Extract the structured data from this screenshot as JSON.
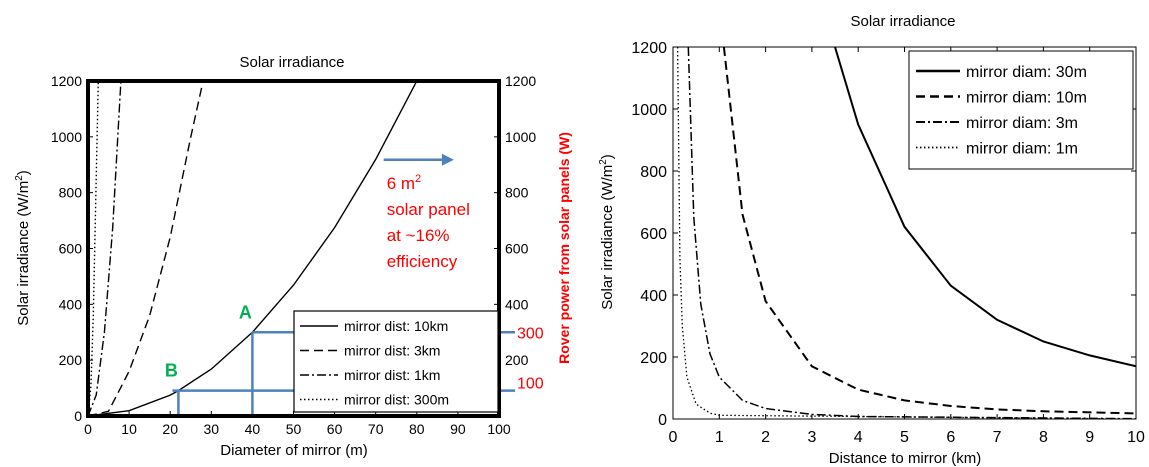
{
  "chart_data": [
    {
      "type": "line",
      "title": "Solar irradiance",
      "xlabel": "Diameter of mirror (m)",
      "ylabel": "Solar irradiance (W/m",
      "ylabel_sup": "2",
      "ylabel_end": ")",
      "y2label": "Rover power from solar panels (W)",
      "xlim": [
        0,
        100
      ],
      "ylim": [
        0,
        1200
      ],
      "xticks": [
        "0",
        "10",
        "20",
        "30",
        "40",
        "50",
        "60",
        "70",
        "80",
        "90",
        "100"
      ],
      "yticks": [
        "0",
        "200",
        "400",
        "600",
        "800",
        "1000",
        "1200"
      ],
      "y2ticks": [
        "200",
        "400",
        "600",
        "800",
        "1000",
        "1200"
      ],
      "grid": false,
      "legend_position": "bottom-right",
      "series": [
        {
          "name": "mirror dist: 10km",
          "style": "solid",
          "x": [
            0,
            10,
            20,
            22,
            30,
            40,
            50,
            60,
            70,
            80,
            85
          ],
          "y": [
            0,
            19,
            75,
            91,
            168,
            300,
            469,
            675,
            919,
            1200,
            1355
          ]
        },
        {
          "name": "mirror dist: 3km",
          "style": "dashed",
          "x": [
            0,
            5,
            10,
            15,
            20,
            25,
            28
          ],
          "y": [
            0,
            17,
            160,
            360,
            640,
            1000,
            1200
          ]
        },
        {
          "name": "mirror dist: 1km",
          "style": "dashdot",
          "x": [
            0,
            2,
            4,
            6,
            8
          ],
          "y": [
            0,
            75,
            300,
            675,
            1200
          ]
        },
        {
          "name": "mirror dist: 300m",
          "style": "dotted",
          "x": [
            0,
            0.7,
            1.3,
            2,
            2.5
          ],
          "y": [
            0,
            108,
            360,
            850,
            1200
          ]
        }
      ],
      "annotations": {
        "a_label": "A",
        "b_label": "B",
        "level_300": "300",
        "level_100": "100",
        "a_x": 40,
        "a_y": 300,
        "b_x": 22,
        "b_y": 91,
        "arrow_y": 900,
        "arrow_from_x": 70,
        "arrow_to_x": 90,
        "note_line1": "6 m",
        "note_sup": "2",
        "note_line2": "solar panel",
        "note_line3": "at ~16%",
        "note_line4": "efficiency"
      },
      "colors": {
        "highlight_lines": "#4f81bd",
        "annotation_text": "#ff0000",
        "point_labels": "#00b050"
      }
    },
    {
      "type": "line",
      "title": "Solar irradiance",
      "xlabel": "Distance to mirror (km)",
      "ylabel": "Solar irradiance (W/m",
      "ylabel_sup": "2",
      "ylabel_end": ")",
      "xlim": [
        0,
        10
      ],
      "ylim": [
        0,
        1200
      ],
      "xticks": [
        "0",
        "1",
        "2",
        "3",
        "4",
        "5",
        "6",
        "7",
        "8",
        "9",
        "10"
      ],
      "yticks": [
        "0",
        "200",
        "400",
        "600",
        "800",
        "1000",
        "1200"
      ],
      "grid": false,
      "legend_position": "top-right",
      "series": [
        {
          "name": "mirror diam: 30m",
          "style": "solid",
          "x": [
            3.5,
            4,
            5,
            6,
            7,
            8,
            9,
            10
          ],
          "y": [
            1200,
            950,
            620,
            430,
            320,
            250,
            205,
            170
          ]
        },
        {
          "name": "mirror diam: 10m",
          "style": "dashed",
          "x": [
            1.1,
            1.5,
            2,
            3,
            4,
            5,
            6,
            7,
            8,
            10
          ],
          "y": [
            1200,
            660,
            380,
            170,
            95,
            60,
            42,
            31,
            25,
            18
          ]
        },
        {
          "name": "mirror diam: 3m",
          "style": "dashdot",
          "x": [
            0.33,
            0.45,
            0.6,
            0.8,
            1,
            1.5,
            2,
            3,
            4,
            10
          ],
          "y": [
            1200,
            650,
            370,
            210,
            135,
            60,
            34,
            15,
            8,
            1
          ]
        },
        {
          "name": "mirror diam: 1m",
          "style": "dotted",
          "x": [
            0.1,
            0.15,
            0.2,
            0.3,
            0.5,
            0.8,
            1,
            10
          ],
          "y": [
            1200,
            520,
            300,
            135,
            48,
            19,
            12,
            0
          ]
        }
      ]
    }
  ]
}
